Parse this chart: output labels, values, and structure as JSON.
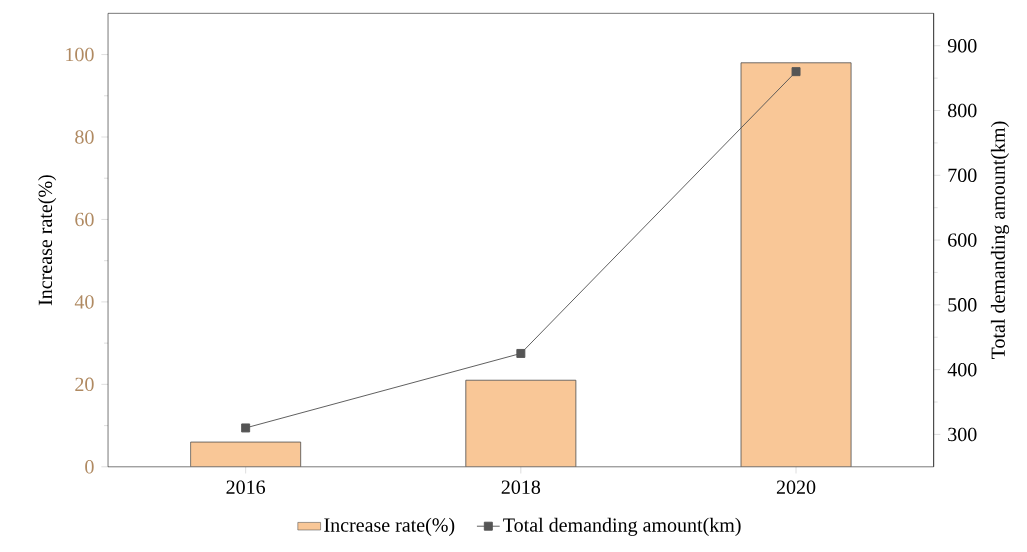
{
  "chart_data": {
    "type": "bar",
    "categories": [
      "2016",
      "2018",
      "2020"
    ],
    "ylabel": "Increase rate(%)",
    "y2label": "Total demanding amount(km)",
    "ylim": [
      0,
      110
    ],
    "yticks": [
      0,
      20,
      40,
      60,
      80,
      100
    ],
    "y2lim": [
      250,
      950
    ],
    "y2ticks": [
      300,
      400,
      500,
      600,
      700,
      800,
      900
    ],
    "legend": "bottom",
    "series": [
      {
        "name": "Increase rate(%)",
        "color": "#f9c797",
        "values": [
          6,
          21,
          98
        ]
      },
      {
        "name": "Total demanding amount(km)",
        "type": "line",
        "axis": "y2",
        "color": "#555555",
        "marker": "square",
        "values": [
          310,
          425,
          860
        ]
      }
    ]
  }
}
